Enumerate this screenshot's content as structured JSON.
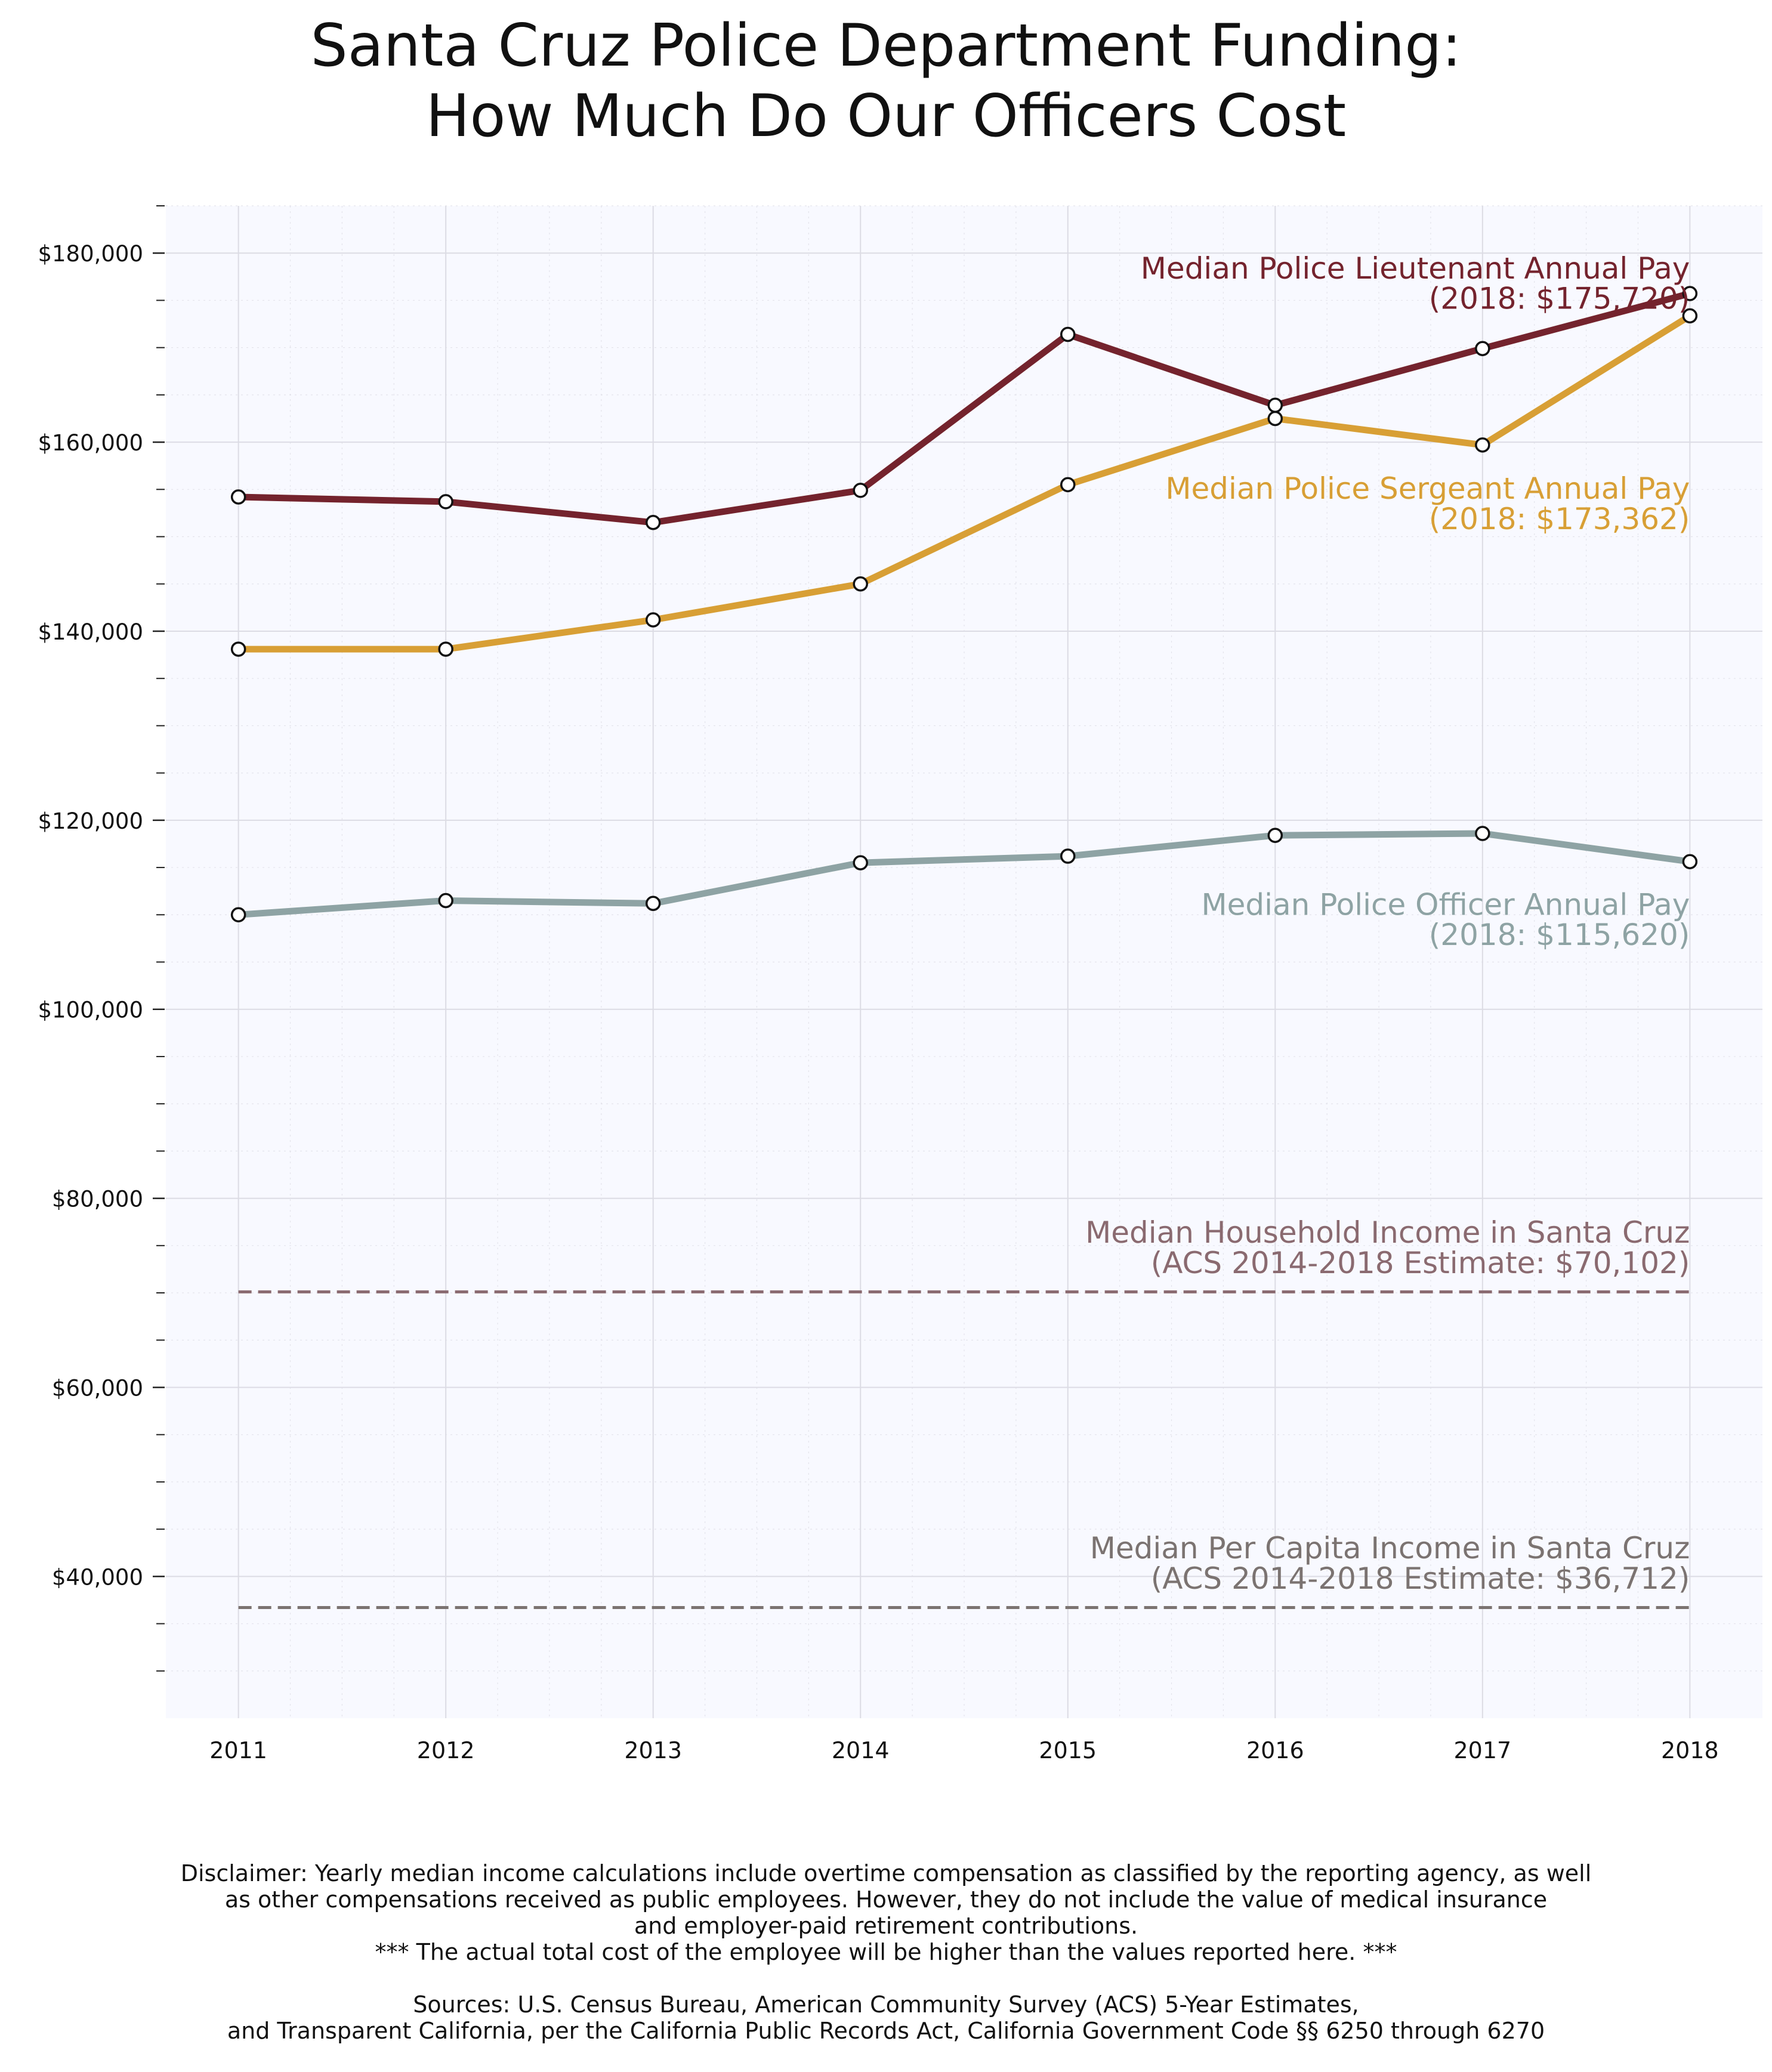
{
  "title_lines": [
    "Santa Cruz Police Department Funding:",
    "How Much Do Our Officers Cost"
  ],
  "colors": {
    "background": "#ffffff",
    "plot_background": "#f8f9ff",
    "grid": "#dcdce4",
    "lieutenant": "#74232d",
    "sergeant": "#d89f35",
    "officer": "#8ea3a4",
    "household": "#8a6a70",
    "per_capita": "#7b7371"
  },
  "chart_data": {
    "type": "line",
    "title": "Santa Cruz Police Department Funding: How Much Do Our Officers Cost",
    "xlabel": "",
    "ylabel": "",
    "x": [
      2011,
      2012,
      2013,
      2014,
      2015,
      2016,
      2017,
      2018
    ],
    "x_ticks": [
      "2011",
      "2012",
      "2013",
      "2014",
      "2015",
      "2016",
      "2017",
      "2018"
    ],
    "xlim": [
      2010.65,
      2018.35
    ],
    "ylim": [
      25000,
      185000
    ],
    "y_ticks": [
      40000,
      60000,
      80000,
      100000,
      120000,
      140000,
      160000,
      180000
    ],
    "y_tick_labels": [
      "$40,000",
      "$60,000",
      "$80,000",
      "$100,000",
      "$120,000",
      "$140,000",
      "$160,000",
      "$180,000"
    ],
    "grid": true,
    "series": [
      {
        "key": "lieutenant",
        "name": "Median Police Lieutenant Annual Pay",
        "values": [
          154200,
          153700,
          151500,
          154900,
          171400,
          163900,
          169900,
          175720
        ],
        "label_lines": [
          "Median Police Lieutenant Annual Pay",
          "(2018: $175,720)"
        ],
        "label_y": [
          177300,
          174100
        ]
      },
      {
        "key": "sergeant",
        "name": "Median Police Sergeant Annual Pay",
        "values": [
          138100,
          138100,
          141200,
          145000,
          155500,
          162500,
          159700,
          173362
        ],
        "label_lines": [
          "Median Police Sergeant Annual Pay",
          "(2018: $173,362)"
        ],
        "label_y": [
          154000,
          150800
        ]
      },
      {
        "key": "officer",
        "name": "Median Police Officer Annual Pay",
        "values": [
          110000,
          111500,
          111200,
          115500,
          116200,
          118400,
          118600,
          115620
        ],
        "label_lines": [
          "Median Police Officer Annual Pay",
          "(2018: $115,620)"
        ],
        "label_y": [
          110000,
          106800
        ]
      }
    ],
    "reference_lines": [
      {
        "key": "household",
        "name": "Median Household Income in Santa Cruz",
        "value": 70102,
        "label_lines": [
          "Median Household Income in Santa Cruz",
          "(ACS 2014-2018 Estimate: $70,102)"
        ],
        "label_y": [
          75300,
          72100
        ]
      },
      {
        "key": "per_capita",
        "name": "Median Per Capita Income in Santa Cruz",
        "value": 36712,
        "label_lines": [
          "Median Per Capita Income in Santa Cruz",
          "(ACS 2014-2018 Estimate: $36,712)"
        ],
        "label_y": [
          41900,
          38700
        ]
      }
    ]
  },
  "footer": {
    "disclaimer_lines": [
      "Disclaimer: Yearly median income calculations include overtime compensation as classified by the reporting agency, as well",
      "as other compensations received as public employees. However, they do not include the value of medical insurance",
      "and employer-paid retirement contributions.",
      "*** The actual total cost of the employee will be higher than the values reported here. ***"
    ],
    "sources_lines": [
      "Sources: U.S. Census Bureau, American Community Survey (ACS) 5-Year Estimates,",
      "and Transparent California, per the California Public Records Act, California Government Code §§ 6250 through 6270"
    ]
  }
}
